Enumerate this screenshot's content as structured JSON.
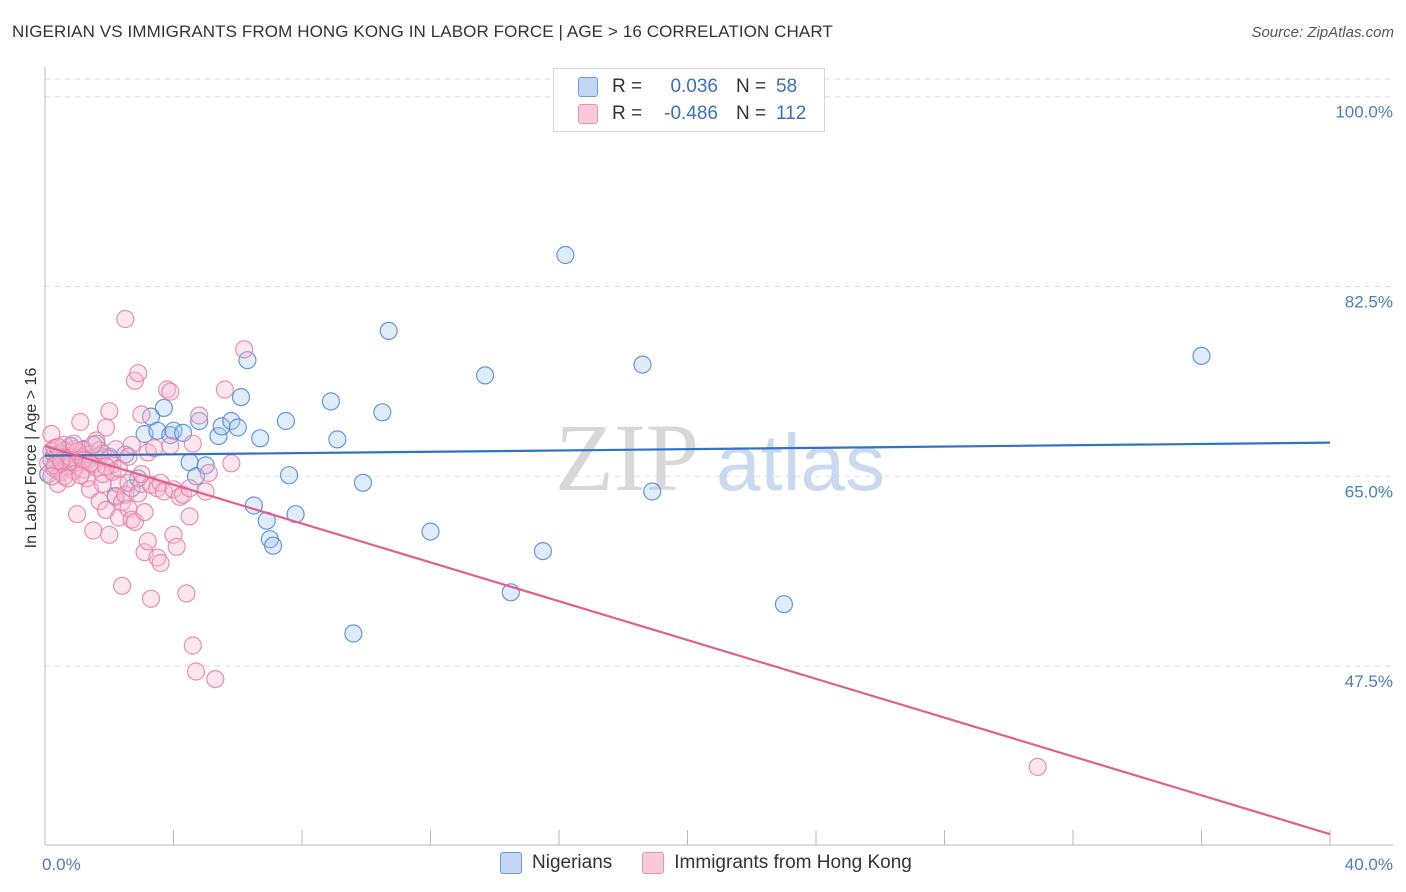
{
  "header": {
    "title": "NIGERIAN VS IMMIGRANTS FROM HONG KONG IN LABOR FORCE | AGE > 16 CORRELATION CHART",
    "source": "Source: ZipAtlas.com"
  },
  "colors": {
    "blue": "#4a86d8",
    "blue_fill": "#aac8f0",
    "blue_line": "#2f72c8",
    "pink": "#e87ca6",
    "pink_fill": "#f6b9cf",
    "pink_line": "#e0608f",
    "grid": "#dddddd",
    "tick_text": "#4a7cc7"
  },
  "legend": {
    "rows": [
      {
        "r_label": "R =",
        "r_value": "0.036",
        "n_label": "N =",
        "n_value": "58"
      },
      {
        "r_label": "R =",
        "r_value": "-0.486",
        "n_label": "N =",
        "n_value": "112"
      }
    ],
    "series_names": [
      "Nigerians",
      "Immigrants from Hong Kong"
    ]
  },
  "watermark": {
    "zip": "ZIP",
    "atlas": "atlas"
  },
  "chart_data": {
    "type": "scatter",
    "title": "NIGERIAN VS IMMIGRANTS FROM HONG KONG IN LABOR FORCE | AGE > 16 CORRELATION CHART",
    "xlabel": "",
    "ylabel": "In Labor Force | Age > 16",
    "xlim": [
      0,
      40
    ],
    "ylim": [
      31,
      102
    ],
    "x_tick_labels": [
      "0.0%",
      "40.0%"
    ],
    "y_ticks": [
      47.5,
      65.0,
      82.5,
      100.0
    ],
    "y_tick_labels": [
      "47.5%",
      "65.0%",
      "82.5%",
      "100.0%"
    ],
    "grid": true,
    "series": [
      {
        "name": "Nigerians",
        "r": 0.036,
        "n": 58,
        "trend": {
          "x0": 0,
          "y0": 66.9,
          "x1": 40,
          "y1": 68.1
        },
        "points": [
          [
            0.1,
            65.2
          ],
          [
            0.2,
            66.5
          ],
          [
            0.3,
            67.0
          ],
          [
            0.4,
            65.5
          ],
          [
            0.5,
            66.8
          ],
          [
            0.6,
            67.4
          ],
          [
            0.7,
            66.2
          ],
          [
            0.8,
            67.8
          ],
          [
            1.0,
            66.9
          ],
          [
            1.2,
            67.5
          ],
          [
            1.4,
            66.6
          ],
          [
            1.6,
            68.0
          ],
          [
            1.8,
            67.1
          ],
          [
            2.0,
            66.8
          ],
          [
            2.2,
            63.2
          ],
          [
            2.5,
            67.0
          ],
          [
            2.7,
            63.9
          ],
          [
            2.9,
            64.8
          ],
          [
            3.1,
            68.9
          ],
          [
            3.3,
            70.5
          ],
          [
            3.5,
            69.2
          ],
          [
            3.7,
            71.3
          ],
          [
            3.9,
            68.8
          ],
          [
            4.0,
            69.2
          ],
          [
            4.3,
            69.0
          ],
          [
            4.5,
            66.3
          ],
          [
            4.7,
            65.0
          ],
          [
            4.8,
            70.1
          ],
          [
            5.0,
            66.0
          ],
          [
            5.4,
            68.7
          ],
          [
            5.5,
            69.6
          ],
          [
            5.8,
            70.1
          ],
          [
            6.1,
            72.3
          ],
          [
            6.0,
            69.5
          ],
          [
            6.3,
            75.7
          ],
          [
            6.7,
            68.5
          ],
          [
            6.5,
            62.3
          ],
          [
            6.9,
            60.9
          ],
          [
            7.0,
            59.2
          ],
          [
            7.1,
            58.6
          ],
          [
            7.5,
            70.1
          ],
          [
            7.6,
            65.1
          ],
          [
            7.8,
            61.5
          ],
          [
            8.9,
            71.9
          ],
          [
            9.1,
            68.4
          ],
          [
            9.6,
            50.5
          ],
          [
            9.9,
            64.4
          ],
          [
            10.5,
            70.9
          ],
          [
            10.7,
            78.4
          ],
          [
            12.0,
            59.9
          ],
          [
            13.7,
            74.3
          ],
          [
            14.5,
            54.3
          ],
          [
            15.5,
            58.1
          ],
          [
            16.2,
            85.4
          ],
          [
            18.6,
            75.3
          ],
          [
            18.9,
            63.6
          ],
          [
            23.0,
            53.2
          ],
          [
            36.0,
            76.1
          ]
        ]
      },
      {
        "name": "Immigrants from Hong Kong",
        "r": -0.486,
        "n": 112,
        "trend": {
          "x0": 0,
          "y0": 67.8,
          "x1": 40,
          "y1": 32.0
        },
        "points": [
          [
            0.1,
            66.2
          ],
          [
            0.2,
            67.3
          ],
          [
            0.2,
            68.9
          ],
          [
            0.3,
            65.7
          ],
          [
            0.3,
            67.6
          ],
          [
            0.4,
            66.9
          ],
          [
            0.4,
            64.3
          ],
          [
            0.5,
            67.1
          ],
          [
            0.5,
            65.4
          ],
          [
            0.6,
            66.5
          ],
          [
            0.6,
            67.9
          ],
          [
            0.7,
            66.7
          ],
          [
            0.7,
            65.9
          ],
          [
            0.8,
            67.2
          ],
          [
            0.8,
            66.0
          ],
          [
            0.9,
            65.5
          ],
          [
            0.9,
            67.5
          ],
          [
            1.0,
            66.3
          ],
          [
            1.0,
            61.5
          ],
          [
            1.1,
            66.8
          ],
          [
            1.1,
            70.0
          ],
          [
            1.2,
            65.6
          ],
          [
            1.2,
            67.4
          ],
          [
            1.3,
            66.4
          ],
          [
            1.3,
            64.8
          ],
          [
            1.4,
            63.8
          ],
          [
            1.4,
            67.0
          ],
          [
            1.5,
            66.1
          ],
          [
            1.5,
            60.0
          ],
          [
            1.6,
            65.8
          ],
          [
            1.6,
            68.3
          ],
          [
            1.7,
            62.7
          ],
          [
            1.7,
            66.9
          ],
          [
            1.8,
            64.3
          ],
          [
            1.8,
            65.2
          ],
          [
            1.9,
            69.5
          ],
          [
            1.9,
            61.9
          ],
          [
            2.0,
            71.0
          ],
          [
            2.0,
            59.6
          ],
          [
            2.1,
            66.1
          ],
          [
            2.1,
            65.4
          ],
          [
            2.2,
            67.5
          ],
          [
            2.2,
            63.1
          ],
          [
            2.3,
            64.3
          ],
          [
            2.3,
            61.2
          ],
          [
            2.4,
            62.6
          ],
          [
            2.4,
            54.9
          ],
          [
            2.5,
            63.3
          ],
          [
            2.5,
            79.5
          ],
          [
            2.6,
            64.4
          ],
          [
            2.6,
            62.0
          ],
          [
            2.7,
            61.0
          ],
          [
            2.7,
            67.9
          ],
          [
            2.8,
            73.8
          ],
          [
            2.8,
            60.8
          ],
          [
            2.9,
            74.5
          ],
          [
            2.9,
            63.4
          ],
          [
            3.0,
            64.3
          ],
          [
            3.0,
            70.7
          ],
          [
            3.1,
            61.7
          ],
          [
            3.1,
            58.0
          ],
          [
            3.2,
            59.0
          ],
          [
            3.2,
            67.2
          ],
          [
            3.3,
            53.7
          ],
          [
            3.3,
            64.2
          ],
          [
            3.4,
            67.6
          ],
          [
            3.5,
            63.9
          ],
          [
            3.5,
            57.5
          ],
          [
            3.6,
            64.4
          ],
          [
            3.6,
            57.0
          ],
          [
            3.7,
            63.6
          ],
          [
            3.8,
            73.0
          ],
          [
            3.9,
            72.8
          ],
          [
            3.9,
            67.8
          ],
          [
            4.0,
            63.8
          ],
          [
            4.0,
            59.6
          ],
          [
            4.1,
            58.5
          ],
          [
            4.2,
            63.1
          ],
          [
            4.3,
            63.3
          ],
          [
            4.4,
            54.2
          ],
          [
            4.5,
            63.9
          ],
          [
            4.5,
            61.3
          ],
          [
            4.6,
            49.4
          ],
          [
            4.6,
            68.0
          ],
          [
            4.7,
            47.0
          ],
          [
            4.8,
            70.6
          ],
          [
            5.0,
            63.6
          ],
          [
            5.1,
            65.3
          ],
          [
            5.3,
            46.3
          ],
          [
            5.6,
            73.0
          ],
          [
            5.8,
            66.2
          ],
          [
            6.2,
            76.7
          ],
          [
            0.3,
            66.0
          ],
          [
            0.5,
            66.4
          ],
          [
            0.8,
            66.7
          ],
          [
            1.0,
            67.3
          ],
          [
            1.2,
            66.5
          ],
          [
            0.6,
            65.0
          ],
          [
            0.9,
            68.0
          ],
          [
            1.4,
            66.2
          ],
          [
            1.7,
            67.4
          ],
          [
            2.0,
            66.6
          ],
          [
            2.3,
            65.7
          ],
          [
            0.4,
            67.7
          ],
          [
            0.7,
            64.8
          ],
          [
            1.1,
            65.1
          ],
          [
            1.5,
            67.9
          ],
          [
            1.9,
            65.9
          ],
          [
            2.6,
            66.8
          ],
          [
            3.0,
            65.2
          ],
          [
            0.2,
            65.0
          ],
          [
            30.9,
            38.2
          ]
        ]
      }
    ]
  }
}
